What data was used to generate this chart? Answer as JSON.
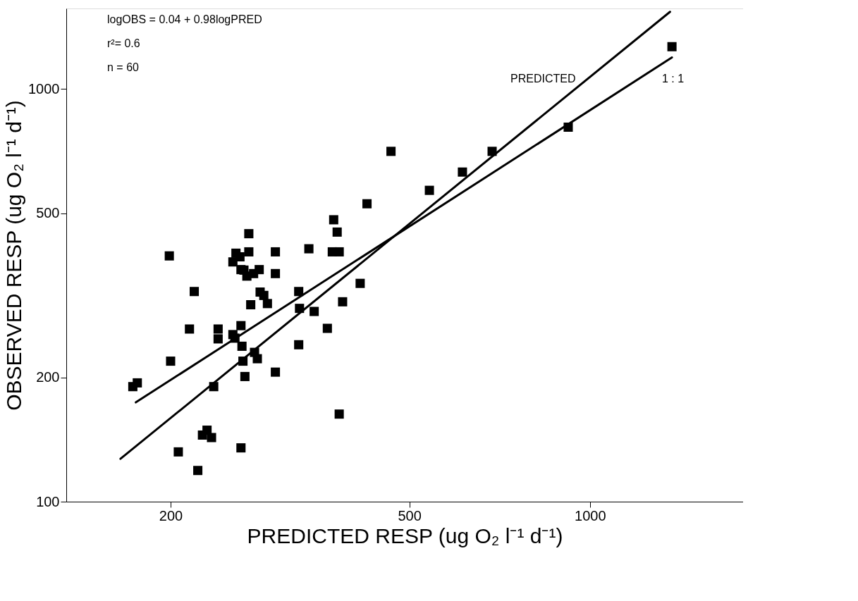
{
  "chart_data": {
    "type": "scatter",
    "xlabel": "PREDICTED RESP (ug O₂ l⁻¹ d⁻¹)",
    "ylabel": "OBSERVED RESP (ug O₂ l⁻¹ d⁻¹)",
    "log": "xy",
    "grid": false,
    "legend": false,
    "xlim": [
      134,
      1800
    ],
    "ylim": [
      100,
      1567
    ],
    "xticks": [
      200,
      500,
      1000
    ],
    "yticks": [
      100,
      200,
      500,
      1000
    ],
    "series": [
      {
        "marker": "square",
        "color": "#000000",
        "x": [
          173,
          176,
          199,
          200,
          206,
          215,
          219,
          222,
          226,
          230,
          234,
          236,
          240,
          240,
          254,
          254,
          256,
          261,
          262,
          262,
          262,
          263,
          264,
          266,
          270,
          270,
          272,
          275,
          276,
          279,
          281,
          282,
          286,
          290,
          299,
          299,
          299,
          327,
          327,
          328,
          340,
          347,
          365,
          374,
          372,
          379,
          382,
          387,
          382,
          414,
          425,
          466,
          540,
          613,
          687,
          920,
          1370,
          257,
          268,
          265
        ],
        "values": [
          190,
          194,
          394,
          219,
          132,
          262,
          323,
          119,
          145,
          149,
          143,
          190,
          262,
          248,
          254,
          381,
          249,
          392,
          365,
          135,
          267,
          238,
          219,
          201,
          446,
          403,
          300,
          357,
          230,
          222,
          365,
          322,
          316,
          302,
          403,
          357,
          206,
          323,
          240,
          294,
          410,
          289,
          263,
          482,
          403,
          450,
          403,
          305,
          163,
          338,
          527,
          706,
          568,
          629,
          706,
          808,
          1266,
          400,
          352,
          364
        ]
      },
      {
        "type": "line",
        "color": "#000000",
        "x": [
          175,
          1370
        ],
        "values": [
          174,
          1192
        ]
      },
      {
        "type": "line",
        "color": "#000000",
        "x": [
          165,
          1360
        ],
        "values": [
          127,
          1538
        ]
      }
    ],
    "annotations": [
      "logOBS = 0.04 + 0.98logPRED",
      "r²= 0.6",
      "n = 60",
      "PREDICTED",
      "1 : 1"
    ]
  }
}
